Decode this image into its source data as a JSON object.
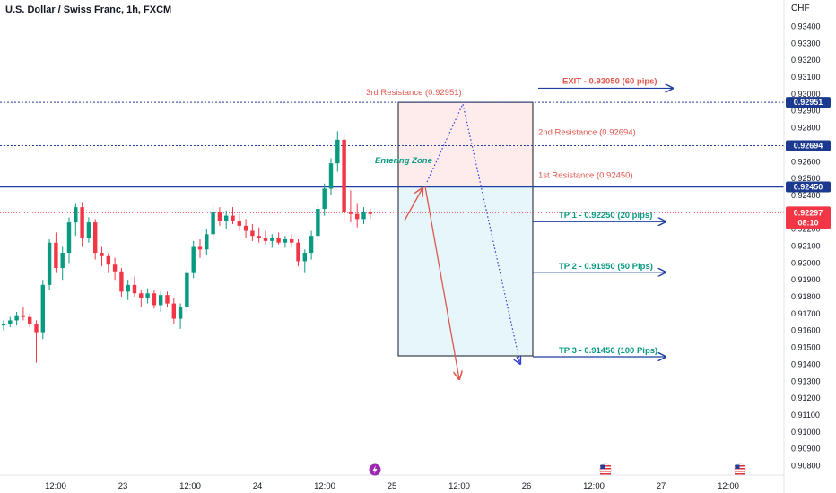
{
  "header": {
    "title": "U.S. Dollar / Swiss Franc, 1h, FXCM",
    "unit": "CHF"
  },
  "chart_data": {
    "type": "candlestick",
    "symbol": "U.S. Dollar / Swiss Franc",
    "interval": "1h",
    "source": "FXCM",
    "ylim": [
      0.9075,
      0.9355
    ],
    "y_ticks": [
      "0.93400",
      "0.93300",
      "0.93200",
      "0.93100",
      "0.93000",
      "0.92900",
      "0.92800",
      "0.92700",
      "0.92600",
      "0.92500",
      "0.92400",
      "0.92300",
      "0.92200",
      "0.92100",
      "0.92000",
      "0.91900",
      "0.91800",
      "0.91700",
      "0.91600",
      "0.91500",
      "0.91400",
      "0.91300",
      "0.91200",
      "0.91100",
      "0.91000",
      "0.90900",
      "0.90800"
    ],
    "x_ticks": [
      "12:00",
      "23",
      "12:00",
      "24",
      "12:00",
      "25",
      "12:00",
      "26",
      "12:00",
      "27",
      "12:00"
    ],
    "candles_ohlc": [
      [
        0.9163,
        0.9166,
        0.916,
        0.9164
      ],
      [
        0.9164,
        0.9168,
        0.9162,
        0.9166
      ],
      [
        0.9166,
        0.9171,
        0.9163,
        0.9169
      ],
      [
        0.9169,
        0.9174,
        0.9166,
        0.9168
      ],
      [
        0.9168,
        0.917,
        0.9162,
        0.9164
      ],
      [
        0.9164,
        0.9166,
        0.9141,
        0.9159
      ],
      [
        0.9159,
        0.919,
        0.9155,
        0.9187
      ],
      [
        0.9187,
        0.9214,
        0.9184,
        0.9212
      ],
      [
        0.9212,
        0.9218,
        0.9194,
        0.9197
      ],
      [
        0.9197,
        0.921,
        0.919,
        0.9206
      ],
      [
        0.9206,
        0.9227,
        0.92,
        0.9224
      ],
      [
        0.9224,
        0.9235,
        0.9216,
        0.9233
      ],
      [
        0.9233,
        0.9236,
        0.921,
        0.9215
      ],
      [
        0.9215,
        0.9227,
        0.9212,
        0.9224
      ],
      [
        0.9224,
        0.9226,
        0.9202,
        0.9206
      ],
      [
        0.9206,
        0.921,
        0.9198,
        0.9204
      ],
      [
        0.9204,
        0.9206,
        0.9194,
        0.9199
      ],
      [
        0.9199,
        0.9203,
        0.919,
        0.9195
      ],
      [
        0.9195,
        0.9197,
        0.918,
        0.9183
      ],
      [
        0.9183,
        0.919,
        0.9178,
        0.9187
      ],
      [
        0.9187,
        0.9192,
        0.918,
        0.9182
      ],
      [
        0.9182,
        0.9184,
        0.9174,
        0.9179
      ],
      [
        0.9179,
        0.9185,
        0.9176,
        0.9182
      ],
      [
        0.9182,
        0.9184,
        0.9173,
        0.9175
      ],
      [
        0.9175,
        0.9183,
        0.9171,
        0.9181
      ],
      [
        0.9181,
        0.9183,
        0.9174,
        0.9176
      ],
      [
        0.9176,
        0.9179,
        0.9164,
        0.9167
      ],
      [
        0.9167,
        0.9176,
        0.9161,
        0.9174
      ],
      [
        0.9174,
        0.9197,
        0.9171,
        0.9194
      ],
      [
        0.9194,
        0.9213,
        0.9191,
        0.921
      ],
      [
        0.921,
        0.9214,
        0.9203,
        0.9208
      ],
      [
        0.9208,
        0.922,
        0.9205,
        0.9217
      ],
      [
        0.9217,
        0.9234,
        0.9214,
        0.923
      ],
      [
        0.923,
        0.9233,
        0.9222,
        0.9225
      ],
      [
        0.9225,
        0.9231,
        0.922,
        0.9228
      ],
      [
        0.9228,
        0.9233,
        0.9223,
        0.9225
      ],
      [
        0.9225,
        0.9229,
        0.9219,
        0.9222
      ],
      [
        0.9222,
        0.9226,
        0.9215,
        0.9219
      ],
      [
        0.9219,
        0.9223,
        0.9213,
        0.9216
      ],
      [
        0.9216,
        0.9221,
        0.9212,
        0.9215
      ],
      [
        0.9215,
        0.9219,
        0.9211,
        0.9213
      ],
      [
        0.9213,
        0.9217,
        0.9209,
        0.9215
      ],
      [
        0.9215,
        0.9218,
        0.9211,
        0.9212
      ],
      [
        0.9212,
        0.9216,
        0.9209,
        0.9214
      ],
      [
        0.9214,
        0.9217,
        0.921,
        0.9212
      ],
      [
        0.9212,
        0.9214,
        0.9198,
        0.9201
      ],
      [
        0.9201,
        0.9208,
        0.9194,
        0.9206
      ],
      [
        0.9206,
        0.9219,
        0.9202,
        0.9216
      ],
      [
        0.9216,
        0.9235,
        0.9213,
        0.9232
      ],
      [
        0.9232,
        0.9247,
        0.9228,
        0.9244
      ],
      [
        0.9244,
        0.9262,
        0.924,
        0.9259
      ],
      [
        0.9259,
        0.9278,
        0.9254,
        0.9273
      ],
      [
        0.9273,
        0.9276,
        0.9225,
        0.923
      ],
      [
        0.923,
        0.9243,
        0.9224,
        0.9229
      ],
      [
        0.9229,
        0.9235,
        0.9221,
        0.9226
      ],
      [
        0.9226,
        0.9233,
        0.9223,
        0.923
      ],
      [
        0.923,
        0.9232,
        0.9226,
        0.9229
      ]
    ],
    "horizontal_levels": [
      {
        "label": "3rd Resistance (0.92951)",
        "value": 0.92951,
        "tag": "0.92951"
      },
      {
        "label": "2nd Resistance (0.92694)",
        "value": 0.92694,
        "tag": "0.92694"
      },
      {
        "label": "1st Resistance (0.92450)",
        "value": 0.9245,
        "tag": "0.92450"
      }
    ],
    "current_price": {
      "value": "0.92297",
      "countdown": "08:10"
    },
    "trade_annotations": {
      "entry_label": "Entering Zone",
      "exit_label": "EXIT - 0.93050 (60 pips)",
      "targets": [
        {
          "label": "TP 1 - 0.92250 (20 pips)",
          "value": 0.9225
        },
        {
          "label": "TP 2 - 0.91950 (50 Pips)",
          "value": 0.9195
        },
        {
          "label": "TP 3 - 0.91450 (100 Pips)",
          "value": 0.9145
        }
      ]
    },
    "colors": {
      "up": "#089981",
      "down": "#f23645",
      "level": "#1e3fa0",
      "tag": "#1b3a8f",
      "price_tag": "#f23645",
      "tp": "#089981",
      "resistance_text": "#e0574f",
      "exit_text": "#e0574f",
      "zone_top": "#fdeceb",
      "zone_bottom": "#e6f6fb",
      "arrow_red": "#e0574f",
      "dotted_blue": "#2d3ed8"
    },
    "event_icons": [
      "lightning-icon",
      "us-flag-icon",
      "us-flag-icon"
    ]
  }
}
